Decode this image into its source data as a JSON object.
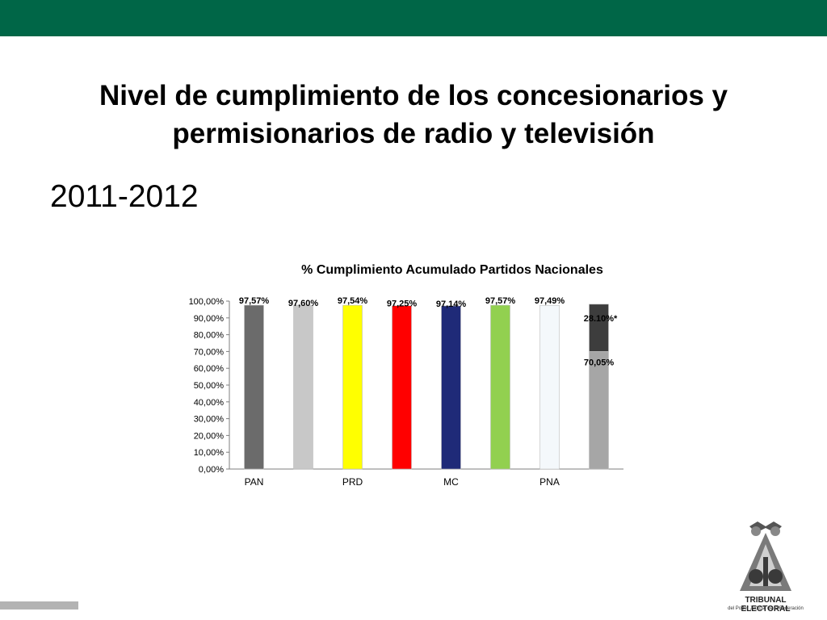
{
  "slide": {
    "title": "Nivel de cumplimiento de los concesionarios y permisionarios de radio y televisión",
    "subtitle": "2011-2012"
  },
  "colors": {
    "top_bar": "#006647",
    "bottom_bar": "#b3b3b3"
  },
  "logo": {
    "icon": "tribunal-electoral-logo-icon",
    "line1": "TRIBUNAL ELECTORAL",
    "line2": "del Poder Judicial de la Federación"
  },
  "chart_data": {
    "type": "bar",
    "title": "% Cumplimiento Acumulado Partidos Nacionales",
    "ylim": [
      0,
      100
    ],
    "yticks": [
      "0,00%",
      "10,00%",
      "20,00%",
      "30,00%",
      "40,00%",
      "50,00%",
      "60,00%",
      "70,00%",
      "80,00%",
      "90,00%",
      "100,00%"
    ],
    "categories": [
      "PAN",
      "",
      "PRD",
      "",
      "MC",
      "",
      "PNA",
      ""
    ],
    "values": [
      97.57,
      97.6,
      97.54,
      97.25,
      97.14,
      97.57,
      97.49,
      70.05
    ],
    "labels": [
      "97,57%",
      "97,60%",
      "97,54%",
      "97,25%",
      "97,14%",
      "97,57%",
      "97,49%",
      "70,05%"
    ],
    "colors": [
      "#6b6b6b",
      "#c8c8c8",
      "#ffff00",
      "#ff0000",
      "#1f2a78",
      "#92d050",
      "#f4f8fb",
      "#a6a6a6"
    ],
    "stack_top": {
      "bar_index": 7,
      "value": 28.1,
      "label": "28.10%*",
      "color": "#3d3d3d"
    },
    "grid": false,
    "legend": "none"
  }
}
